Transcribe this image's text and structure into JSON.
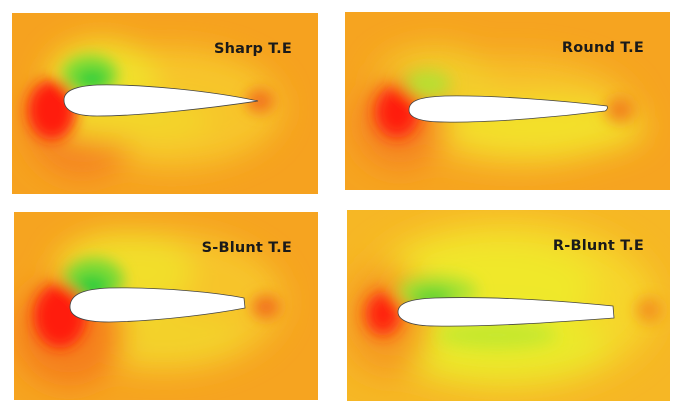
{
  "panels": [
    {
      "label": "Sharp T.E"
    },
    {
      "label": "Round T.E"
    },
    {
      "label": "S-Blunt T.E"
    },
    {
      "label": "R-Blunt T.E"
    }
  ],
  "colors": {
    "background_field": "#f7a01e",
    "stagnation": "#ff1a10",
    "low_pressure": "#39d22f",
    "mid_field": "#f4e52a",
    "airfoil_fill": "#ffffff"
  }
}
